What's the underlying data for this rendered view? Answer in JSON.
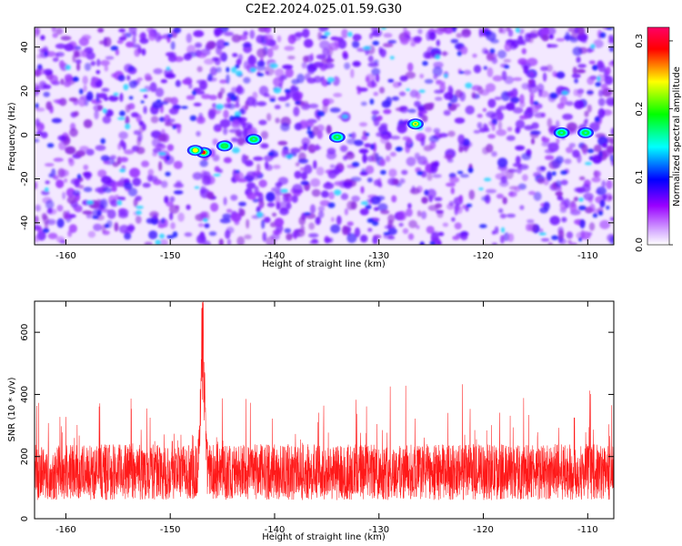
{
  "title": "C2E2.2024.025.01.59.G30",
  "chart_data": [
    {
      "type": "heatmap",
      "xlabel": "Height of straight line (km)",
      "ylabel": "Frequency (Hz)",
      "xlim": [
        -163,
        -107.5
      ],
      "ylim": [
        -50,
        49
      ],
      "xticks": [
        -160,
        -150,
        -140,
        -130,
        -120,
        -110
      ],
      "yticks": [
        -40,
        -20,
        0,
        20,
        40
      ],
      "colorbar": {
        "label": "Normalized spectral amplitude",
        "range": [
          0,
          0.32
        ],
        "ticks": [
          "0.0",
          "0.1",
          "0.2",
          "0.3"
        ],
        "tick_values": [
          0,
          0.1,
          0.2,
          0.3
        ],
        "colormap": [
          "#ffffff",
          "#9900ff",
          "#0000ff",
          "#00ffff",
          "#00ff00",
          "#ffff00",
          "#ff0000",
          "#ff0066"
        ]
      },
      "features": [
        {
          "x": -146.8,
          "y": -8,
          "value": 0.32
        },
        {
          "x": -147.6,
          "y": -7,
          "value": 0.22
        },
        {
          "x": -144.8,
          "y": -5,
          "value": 0.16
        },
        {
          "x": -142,
          "y": -2,
          "value": 0.12
        },
        {
          "x": -134,
          "y": -1,
          "value": 0.13
        },
        {
          "x": -126.5,
          "y": 5,
          "value": 0.2
        },
        {
          "x": -112.5,
          "y": 1,
          "value": 0.12
        },
        {
          "x": -110.2,
          "y": 1,
          "value": 0.12
        }
      ]
    },
    {
      "type": "line",
      "xlabel": "Height of straight line (km)",
      "ylabel": "SNR (10 * v/v)",
      "xlim": [
        -163,
        -107.5
      ],
      "ylim": [
        0,
        700
      ],
      "xticks": [
        -160,
        -150,
        -140,
        -130,
        -120,
        -110
      ],
      "yticks": [
        0,
        200,
        400,
        600
      ],
      "series": [
        {
          "color": "#ff0000",
          "baseline": 150,
          "spread": 90,
          "peak": {
            "x": -146.9,
            "y": 690
          }
        }
      ]
    }
  ]
}
